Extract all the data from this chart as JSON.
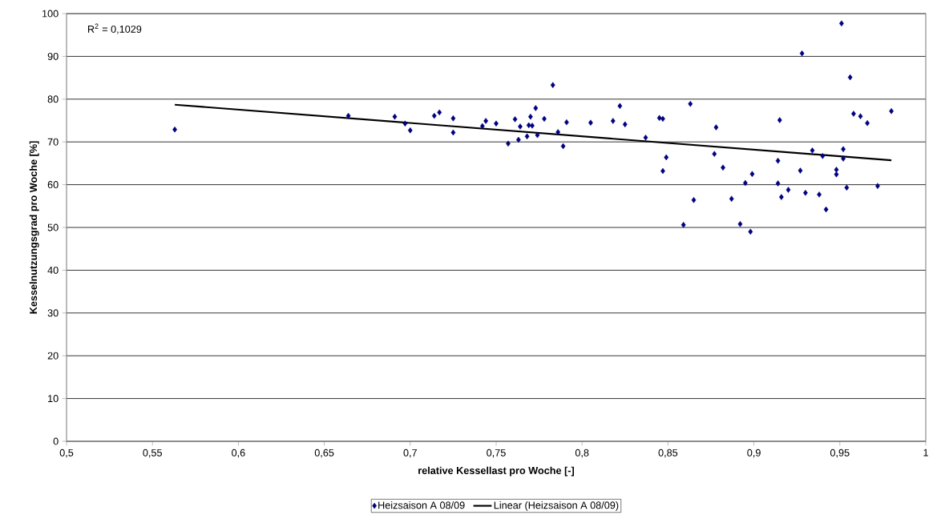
{
  "chart_data": {
    "type": "scatter",
    "xlabel": "relative Kessellast pro Woche [-]",
    "ylabel": "Kesselnutzungsgrad pro Woche [%]",
    "annotations": [
      "R$^{2}$ = 0,1029"
    ],
    "xlim": [
      0.5,
      1
    ],
    "ylim": [
      0,
      100
    ],
    "xticks": [
      {
        "value": 0.5,
        "label": "0,5"
      },
      {
        "value": 0.55,
        "label": "0,55"
      },
      {
        "value": 0.6,
        "label": "0,6"
      },
      {
        "value": 0.65,
        "label": "0,65"
      },
      {
        "value": 0.7,
        "label": "0,7"
      },
      {
        "value": 0.75,
        "label": "0,75"
      },
      {
        "value": 0.8,
        "label": "0,8"
      },
      {
        "value": 0.85,
        "label": "0,85"
      },
      {
        "value": 0.9,
        "label": "0,9"
      },
      {
        "value": 0.95,
        "label": "0,95"
      },
      {
        "value": 1,
        "label": "1"
      }
    ],
    "yticks": [
      0,
      10,
      20,
      30,
      40,
      50,
      60,
      70,
      80,
      90,
      100
    ],
    "grid": "y",
    "legend": "bottom",
    "series": [
      {
        "name": "Heizsaison A 08/09",
        "color": "#000080",
        "marker": "diamond",
        "x": [
          0.563,
          0.664,
          0.691,
          0.697,
          0.7,
          0.714,
          0.717,
          0.725,
          0.725,
          0.742,
          0.744,
          0.75,
          0.757,
          0.761,
          0.763,
          0.764,
          0.768,
          0.769,
          0.77,
          0.771,
          0.773,
          0.774,
          0.778,
          0.783,
          0.786,
          0.789,
          0.791,
          0.805,
          0.818,
          0.822,
          0.825,
          0.837,
          0.845,
          0.847,
          0.847,
          0.849,
          0.859,
          0.863,
          0.865,
          0.877,
          0.878,
          0.882,
          0.887,
          0.892,
          0.895,
          0.898,
          0.899,
          0.914,
          0.914,
          0.915,
          0.916,
          0.92,
          0.927,
          0.928,
          0.93,
          0.934,
          0.938,
          0.94,
          0.942,
          0.948,
          0.948,
          0.951,
          0.952,
          0.952,
          0.954,
          0.956,
          0.958,
          0.962,
          0.966,
          0.972,
          0.98
        ],
        "values": [
          72.9,
          76.1,
          75.9,
          74.3,
          72.7,
          76.1,
          76.9,
          75.5,
          72.2,
          73.7,
          74.9,
          74.3,
          69.6,
          75.3,
          70.5,
          73.6,
          71.3,
          73.9,
          75.9,
          73.8,
          77.9,
          71.6,
          75.4,
          83.3,
          72.3,
          69.0,
          74.6,
          74.5,
          74.9,
          78.4,
          74.1,
          71.0,
          75.6,
          63.2,
          75.4,
          66.4,
          50.6,
          78.9,
          56.4,
          67.2,
          73.4,
          64.0,
          56.7,
          50.8,
          60.4,
          49.0,
          62.5,
          65.6,
          60.3,
          75.1,
          57.1,
          58.8,
          63.3,
          90.7,
          58.1,
          68.0,
          57.7,
          66.7,
          54.2,
          63.5,
          62.4,
          97.7,
          68.3,
          66.1,
          59.3,
          85.1,
          76.6,
          76.0,
          74.4,
          59.7,
          77.2
        ]
      },
      {
        "name": "Linear (Heizsaison A 08/09)",
        "type": "line",
        "color": "#000000",
        "marker": "none",
        "line_style": "solid",
        "x": [
          0.563,
          0.98
        ],
        "values": [
          78.7,
          65.7
        ]
      }
    ]
  }
}
